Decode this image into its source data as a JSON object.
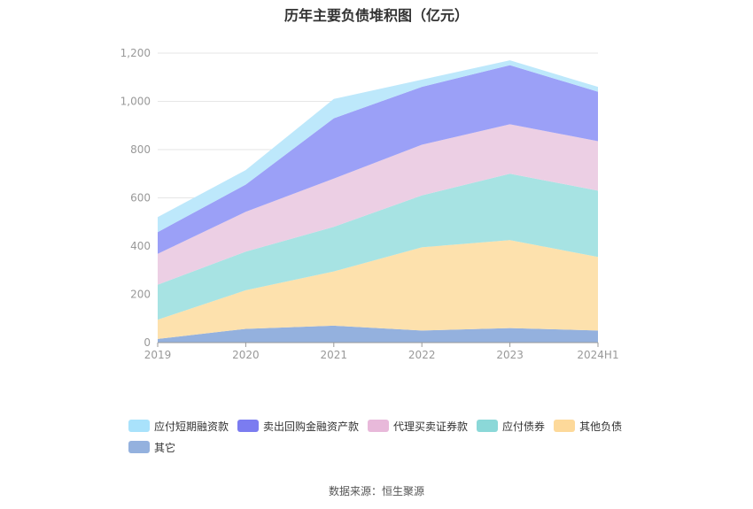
{
  "title": "历年主要负债堆积图（亿元）",
  "source": "数据来源：恒生聚源",
  "chart_data": {
    "type": "area",
    "stacked": true,
    "categories": [
      "2019",
      "2020",
      "2021",
      "2022",
      "2023",
      "2024H1"
    ],
    "ylim": [
      0,
      1200
    ],
    "yticks": [
      0,
      200,
      400,
      600,
      800,
      1000,
      1200
    ],
    "ytick_labels": [
      "0",
      "200",
      "400",
      "600",
      "800",
      "1,000",
      "1,200"
    ],
    "grid": true,
    "legend_position": "bottom",
    "series": [
      {
        "name": "其它",
        "color": "#94b1de",
        "values": [
          15,
          57,
          70,
          50,
          60,
          50
        ]
      },
      {
        "name": "其他负债",
        "color": "#fde1ad",
        "values": [
          80,
          160,
          225,
          345,
          365,
          305
        ]
      },
      {
        "name": "应付债券",
        "color": "#a7e3e3",
        "values": [
          145,
          160,
          185,
          215,
          275,
          275
        ]
      },
      {
        "name": "代理买卖证券款",
        "color": "#eccfe4",
        "values": [
          128,
          165,
          200,
          210,
          205,
          205
        ]
      },
      {
        "name": "卖出回购金融资产款",
        "color": "#9ba0f7",
        "values": [
          90,
          113,
          250,
          240,
          245,
          205
        ]
      },
      {
        "name": "应付短期融资款",
        "color": "#bde8fb",
        "values": [
          62,
          60,
          80,
          30,
          20,
          20
        ]
      }
    ],
    "legend_order": [
      "应付短期融资款",
      "卖出回购金融资产款",
      "代理买卖证券款",
      "应付债券",
      "其他负债",
      "其它"
    ],
    "legend_colors": {
      "应付短期融资款": "#a9e2fb",
      "卖出回购金融资产款": "#7b7cf0",
      "代理买卖证券款": "#e8b9da",
      "应付债券": "#8bd8d8",
      "其他负债": "#fdd99a",
      "其它": "#94b1de"
    }
  }
}
